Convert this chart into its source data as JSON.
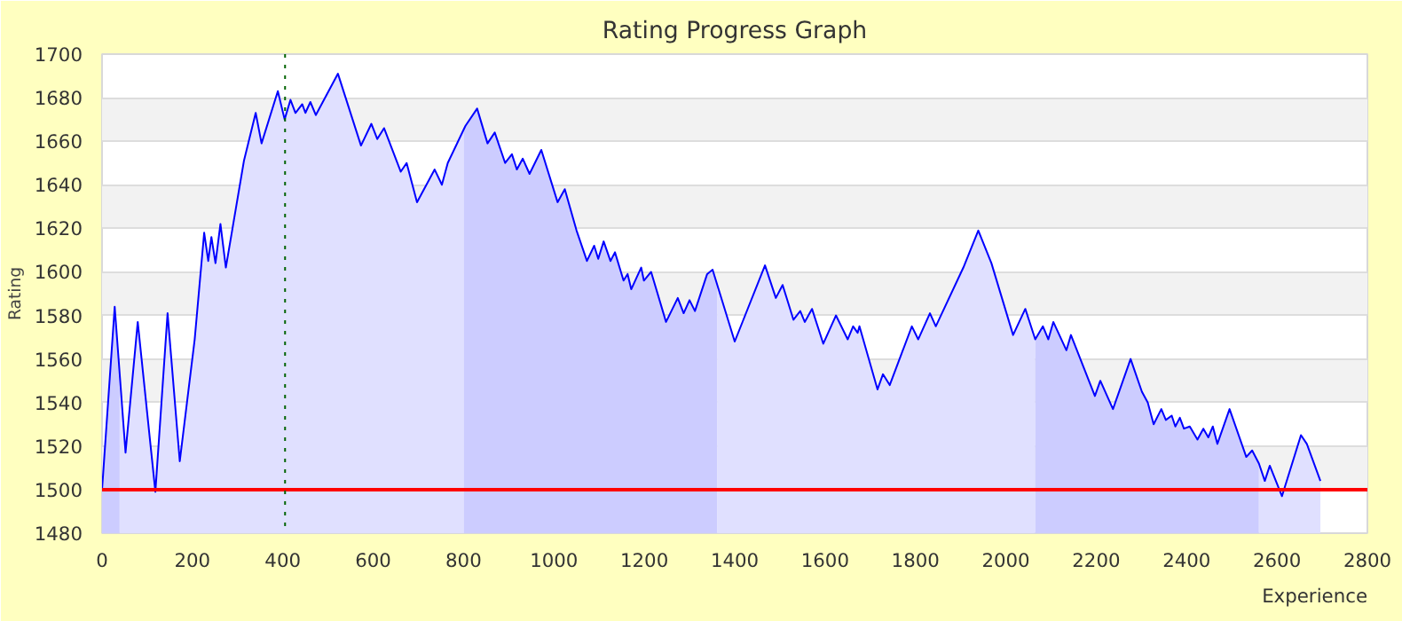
{
  "chart_data": {
    "type": "area",
    "title": "Rating Progress Graph",
    "xlabel": "Experience",
    "ylabel": "Rating",
    "xlim": [
      0,
      2800
    ],
    "ylim": [
      1480,
      1700
    ],
    "xticks": [
      0,
      200,
      400,
      600,
      800,
      1000,
      1200,
      1400,
      1600,
      1800,
      2000,
      2200,
      2400,
      2600,
      2800
    ],
    "yticks": [
      1480,
      1500,
      1520,
      1540,
      1560,
      1580,
      1600,
      1620,
      1640,
      1660,
      1680,
      1700
    ],
    "grid": "y",
    "marker": "none",
    "line_style": "solid",
    "series": [
      {
        "color": "#ccccff",
        "x": [
          0,
          28,
          39
        ],
        "values": [
          1500,
          1584,
          1553
        ]
      },
      {
        "color": "#e0e0ff",
        "x": [
          39,
          52,
          79,
          118,
          145,
          172,
          205,
          226,
          235,
          242,
          251,
          262,
          274,
          314,
          340,
          353,
          389,
          404,
          417,
          428,
          443,
          450,
          461,
          473,
          522,
          573,
          596,
          609,
          624,
          661,
          674,
          697,
          736,
          752,
          765,
          801
        ],
        "values": [
          1553,
          1517,
          1577,
          1499,
          1581,
          1513,
          1569,
          1618,
          1605,
          1616,
          1604,
          1622,
          1602,
          1651,
          1673,
          1659,
          1683,
          1670,
          1679,
          1673,
          1677,
          1673,
          1678,
          1672,
          1691,
          1658,
          1668,
          1661,
          1666,
          1646,
          1650,
          1632,
          1647,
          1640,
          1650,
          1666
        ]
      },
      {
        "color": "#ccccff",
        "x": [
          801,
          804,
          830,
          853,
          869,
          892,
          907,
          918,
          931,
          946,
          972,
          1008,
          1024,
          1050,
          1073,
          1089,
          1098,
          1110,
          1125,
          1135,
          1154,
          1163,
          1171,
          1193,
          1199,
          1215,
          1248,
          1274,
          1287,
          1300,
          1312,
          1339,
          1351,
          1361
        ],
        "values": [
          1666,
          1667,
          1675,
          1659,
          1664,
          1650,
          1654,
          1647,
          1652,
          1645,
          1656,
          1632,
          1638,
          1619,
          1605,
          1612,
          1606,
          1614,
          1605,
          1609,
          1596,
          1599,
          1592,
          1602,
          1596,
          1600,
          1577,
          1588,
          1581,
          1587,
          1582,
          1599,
          1601,
          1594
        ]
      },
      {
        "color": "#e0e0ff",
        "x": [
          1361,
          1400,
          1467,
          1491,
          1506,
          1530,
          1545,
          1555,
          1571,
          1596,
          1624,
          1650,
          1662,
          1672,
          1676,
          1716,
          1728,
          1743,
          1792,
          1806,
          1832,
          1845,
          1906,
          1939,
          1968,
          2016,
          2043,
          2065
        ],
        "values": [
          1594,
          1568,
          1603,
          1588,
          1594,
          1578,
          1582,
          1577,
          1583,
          1567,
          1580,
          1569,
          1575,
          1572,
          1575,
          1546,
          1553,
          1548,
          1575,
          1569,
          1581,
          1575,
          1602,
          1619,
          1604,
          1571,
          1583,
          1569
        ]
      },
      {
        "color": "#ccccff",
        "x": [
          2065,
          2082,
          2094,
          2105,
          2134,
          2144,
          2197,
          2209,
          2237,
          2276,
          2301,
          2314,
          2327,
          2344,
          2354,
          2367,
          2375,
          2385,
          2394,
          2407,
          2424,
          2437,
          2448,
          2458,
          2468,
          2495,
          2532,
          2545,
          2560
        ],
        "values": [
          1569,
          1575,
          1569,
          1577,
          1564,
          1571,
          1543,
          1550,
          1537,
          1560,
          1545,
          1540,
          1530,
          1537,
          1532,
          1534,
          1529,
          1533,
          1528,
          1529,
          1523,
          1528,
          1524,
          1529,
          1521,
          1537,
          1515,
          1518,
          1512
        ]
      },
      {
        "color": "#e0e0ff",
        "x": [
          2560,
          2573,
          2584,
          2611,
          2653,
          2666,
          2696
        ],
        "values": [
          1512,
          1504,
          1511,
          1497,
          1525,
          1521,
          1504
        ]
      },
      {
        "type": "line",
        "color": "#0000ff",
        "x": [
          0,
          28,
          52,
          79,
          118,
          145,
          172,
          205,
          226,
          235,
          242,
          251,
          262,
          274,
          314,
          340,
          353,
          389,
          404,
          417,
          428,
          443,
          450,
          461,
          473,
          522,
          573,
          596,
          609,
          624,
          661,
          674,
          697,
          736,
          752,
          765,
          804,
          830,
          853,
          869,
          892,
          907,
          918,
          931,
          946,
          972,
          1008,
          1024,
          1050,
          1073,
          1089,
          1098,
          1110,
          1125,
          1135,
          1154,
          1163,
          1171,
          1193,
          1199,
          1215,
          1248,
          1274,
          1287,
          1300,
          1312,
          1339,
          1351,
          1400,
          1467,
          1491,
          1506,
          1530,
          1545,
          1555,
          1571,
          1596,
          1624,
          1650,
          1662,
          1672,
          1676,
          1716,
          1728,
          1743,
          1792,
          1806,
          1832,
          1845,
          1906,
          1939,
          1968,
          2016,
          2043,
          2065,
          2082,
          2094,
          2105,
          2134,
          2144,
          2197,
          2209,
          2237,
          2276,
          2301,
          2314,
          2327,
          2344,
          2354,
          2367,
          2375,
          2385,
          2394,
          2407,
          2424,
          2437,
          2448,
          2458,
          2468,
          2495,
          2532,
          2545,
          2560,
          2573,
          2584,
          2611,
          2653,
          2666,
          2696
        ],
        "values": [
          1500,
          1584,
          1517,
          1577,
          1499,
          1581,
          1513,
          1569,
          1618,
          1605,
          1616,
          1604,
          1622,
          1602,
          1651,
          1673,
          1659,
          1683,
          1670,
          1679,
          1673,
          1677,
          1673,
          1678,
          1672,
          1691,
          1658,
          1668,
          1661,
          1666,
          1646,
          1650,
          1632,
          1647,
          1640,
          1650,
          1667,
          1675,
          1659,
          1664,
          1650,
          1654,
          1647,
          1652,
          1645,
          1656,
          1632,
          1638,
          1619,
          1605,
          1612,
          1606,
          1614,
          1605,
          1609,
          1596,
          1599,
          1592,
          1602,
          1596,
          1600,
          1577,
          1588,
          1581,
          1587,
          1582,
          1599,
          1601,
          1568,
          1603,
          1588,
          1594,
          1578,
          1582,
          1577,
          1583,
          1567,
          1580,
          1569,
          1575,
          1572,
          1575,
          1546,
          1553,
          1548,
          1575,
          1569,
          1581,
          1575,
          1602,
          1619,
          1604,
          1571,
          1583,
          1569,
          1575,
          1569,
          1577,
          1564,
          1571,
          1543,
          1550,
          1537,
          1560,
          1545,
          1540,
          1530,
          1537,
          1532,
          1534,
          1529,
          1533,
          1528,
          1529,
          1523,
          1528,
          1524,
          1529,
          1521,
          1537,
          1515,
          1518,
          1512,
          1504,
          1511,
          1497,
          1525,
          1521,
          1504
        ]
      }
    ],
    "ref_lines": [
      {
        "axis": "y",
        "value": 1500,
        "color": "#ff0000",
        "line_style": "solid"
      },
      {
        "axis": "x",
        "value": 405,
        "color": "#006400",
        "line_style": "dotted"
      }
    ]
  }
}
